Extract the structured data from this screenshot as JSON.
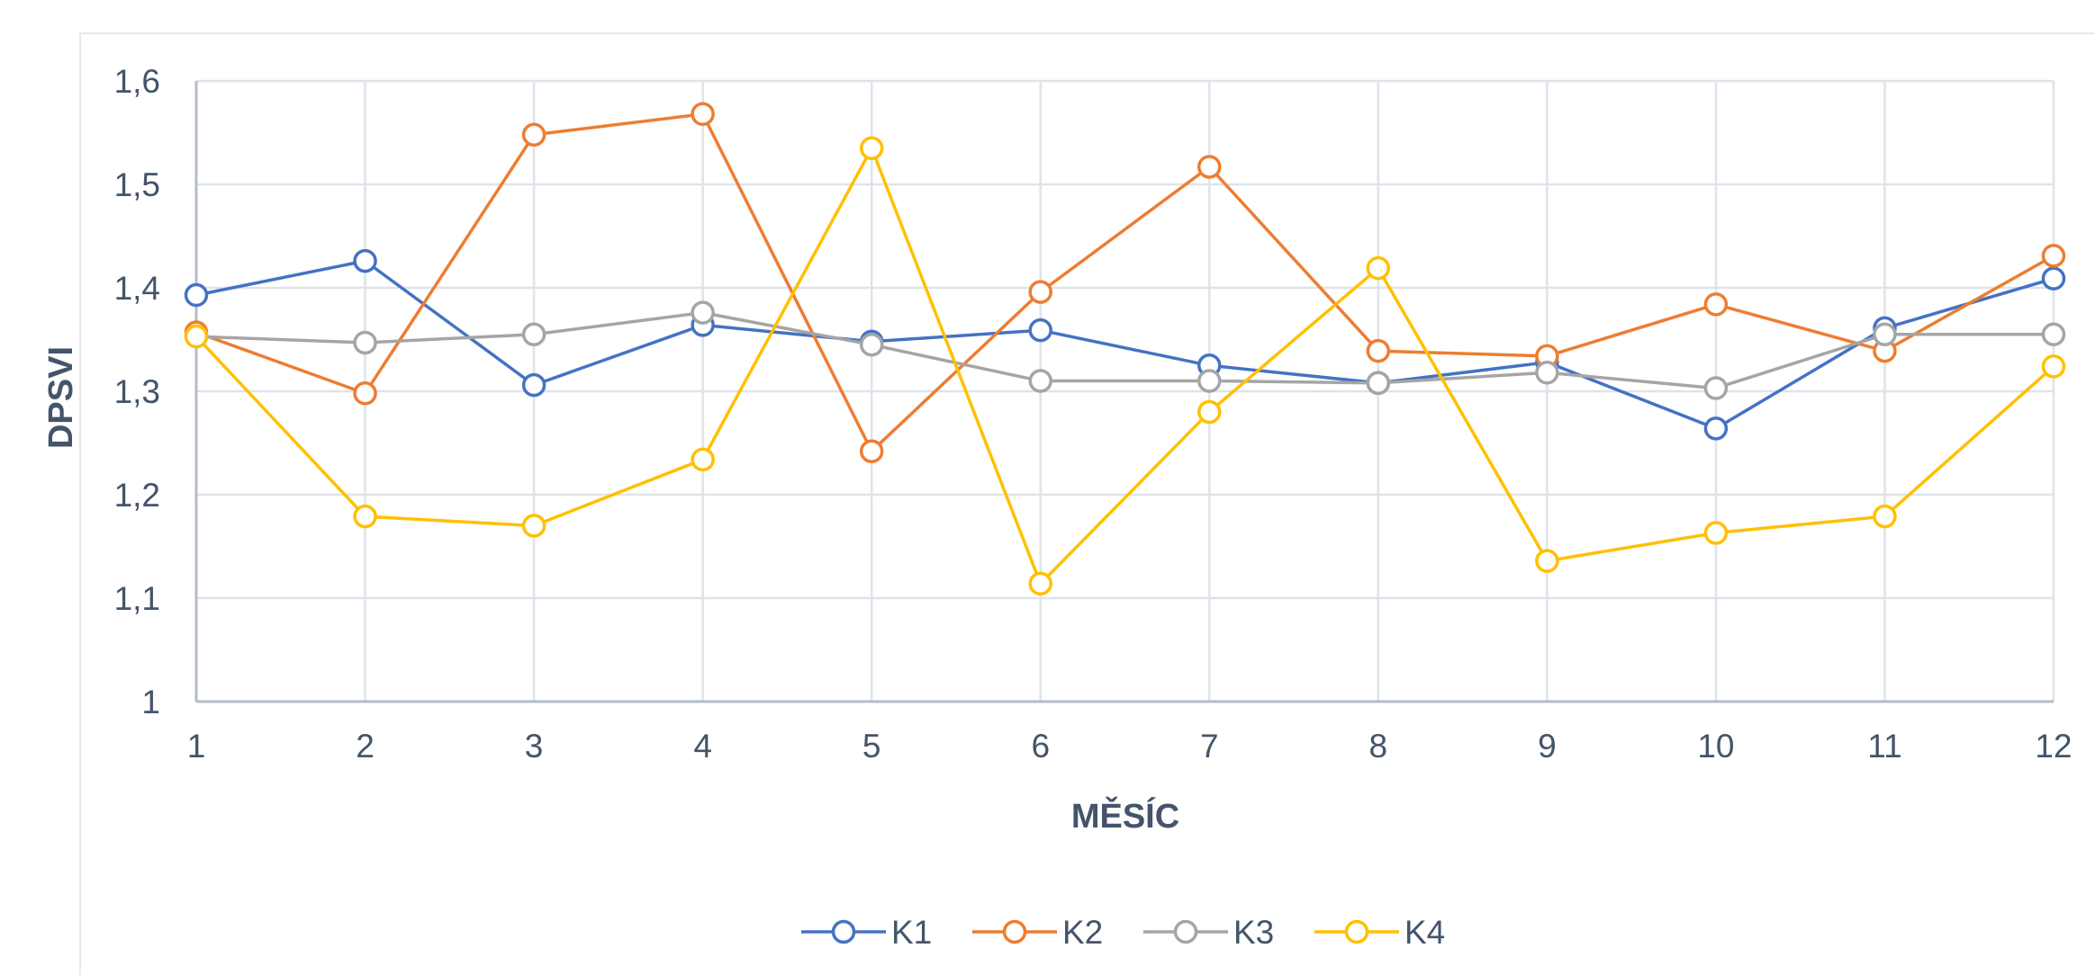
{
  "chart_data": {
    "type": "line",
    "title": "",
    "xlabel": "MĚSÍC",
    "ylabel": "DPSVI",
    "categories": [
      "1",
      "2",
      "3",
      "4",
      "5",
      "6",
      "7",
      "8",
      "9",
      "10",
      "11",
      "12"
    ],
    "x_tick_labels": [
      "1",
      "2",
      "3",
      "4",
      "5",
      "6",
      "7",
      "8",
      "9",
      "10",
      "11",
      "12"
    ],
    "y_tick_labels": [
      "1",
      "1,1",
      "1,2",
      "1,3",
      "1,4",
      "1,5",
      "1,6"
    ],
    "ylim": [
      1,
      1.6
    ],
    "grid": true,
    "legend_position": "bottom",
    "markers": "open-circle",
    "series": [
      {
        "name": "K1",
        "color": "#4472c4",
        "values": [
          1.393,
          1.426,
          1.306,
          1.364,
          1.348,
          1.359,
          1.325,
          1.308,
          1.328,
          1.264,
          1.361,
          1.409
        ]
      },
      {
        "name": "K2",
        "color": "#ed7d31",
        "values": [
          1.357,
          1.298,
          1.548,
          1.568,
          1.242,
          1.396,
          1.517,
          1.339,
          1.334,
          1.384,
          1.339,
          1.431
        ]
      },
      {
        "name": "K3",
        "color": "#a5a5a5",
        "values": [
          1.353,
          1.347,
          1.355,
          1.376,
          1.345,
          1.31,
          1.31,
          1.308,
          1.318,
          1.303,
          1.355,
          1.355
        ]
      },
      {
        "name": "K4",
        "color": "#ffc000",
        "values": [
          1.353,
          1.179,
          1.17,
          1.234,
          1.535,
          1.114,
          1.28,
          1.419,
          1.136,
          1.163,
          1.179,
          1.324
        ]
      }
    ]
  }
}
